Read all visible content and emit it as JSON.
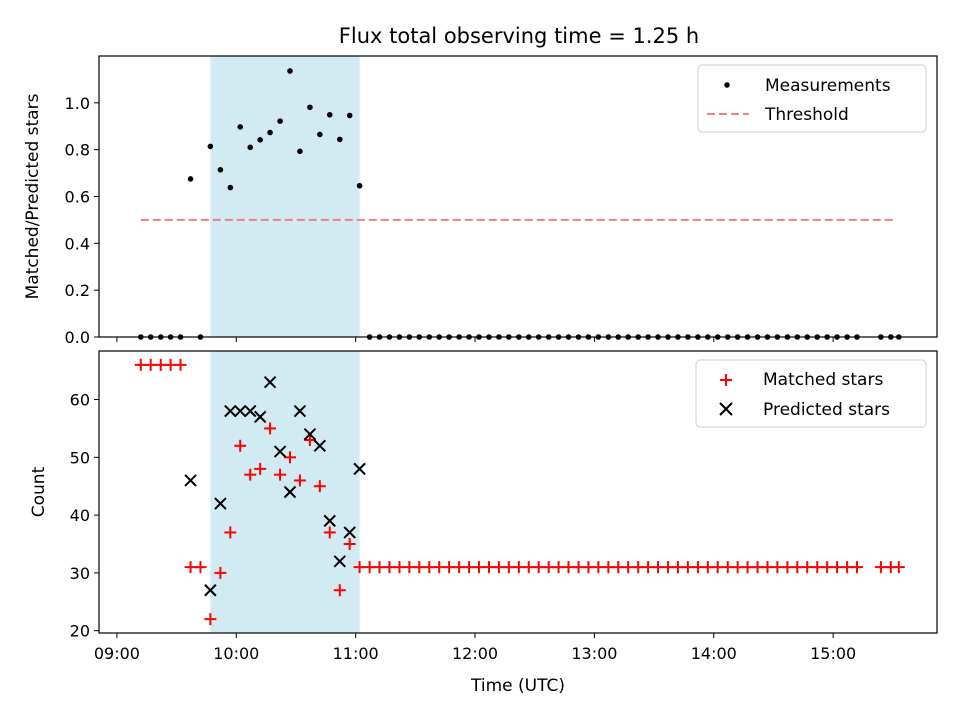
{
  "chart_data": {
    "title": "Flux total observing time = 1.25 h",
    "type": "scatter",
    "x_ticks": [
      "09:00",
      "10:00",
      "11:00",
      "12:00",
      "13:00",
      "14:00",
      "15:00"
    ],
    "xlabel": "Time (UTC)",
    "xlim_hours": [
      8.85,
      15.87
    ],
    "shaded_interval_hours": [
      9.783,
      11.033
    ],
    "colors": {
      "shade": "#add8e6",
      "threshold": "#f08080",
      "matched": "#ff0000",
      "predicted": "#000000",
      "measurement": "#000000"
    },
    "top": {
      "ylabel": "Matched/Predicted stars",
      "ylim": [
        0,
        1.2
      ],
      "y_ticks": [
        "0.0",
        "0.2",
        "0.4",
        "0.6",
        "0.8",
        "1.0"
      ],
      "threshold_value": 0.5,
      "threshold_x_range": [
        9.2,
        15.5
      ],
      "legend": [
        "Measurements",
        "Threshold"
      ],
      "measurements": [
        [
          9.2,
          0
        ],
        [
          9.283,
          0
        ],
        [
          9.367,
          0
        ],
        [
          9.45,
          0
        ],
        [
          9.533,
          0
        ],
        [
          9.617,
          0.675
        ],
        [
          9.7,
          0
        ],
        [
          9.783,
          0.814
        ],
        [
          9.867,
          0.714
        ],
        [
          9.95,
          0.638
        ],
        [
          10.033,
          0.897
        ],
        [
          10.117,
          0.81
        ],
        [
          10.2,
          0.842
        ],
        [
          10.283,
          0.873
        ],
        [
          10.367,
          0.922
        ],
        [
          10.45,
          1.136
        ],
        [
          10.533,
          0.793
        ],
        [
          10.617,
          0.981
        ],
        [
          10.7,
          0.865
        ],
        [
          10.783,
          0.949
        ],
        [
          10.867,
          0.844
        ],
        [
          10.95,
          0.946
        ],
        [
          11.033,
          0.646
        ],
        [
          11.117,
          0
        ],
        [
          11.2,
          0
        ],
        [
          11.283,
          0
        ],
        [
          11.367,
          0
        ],
        [
          11.45,
          0
        ],
        [
          11.533,
          0
        ],
        [
          11.617,
          0
        ],
        [
          11.7,
          0
        ],
        [
          11.783,
          0
        ],
        [
          11.867,
          0
        ],
        [
          11.95,
          0
        ],
        [
          12.033,
          0
        ],
        [
          12.117,
          0
        ],
        [
          12.2,
          0
        ],
        [
          12.283,
          0
        ],
        [
          12.367,
          0
        ],
        [
          12.45,
          0
        ],
        [
          12.533,
          0
        ],
        [
          12.617,
          0
        ],
        [
          12.7,
          0
        ],
        [
          12.783,
          0
        ],
        [
          12.867,
          0
        ],
        [
          12.95,
          0
        ],
        [
          13.033,
          0
        ],
        [
          13.117,
          0
        ],
        [
          13.2,
          0
        ],
        [
          13.283,
          0
        ],
        [
          13.367,
          0
        ],
        [
          13.45,
          0
        ],
        [
          13.533,
          0
        ],
        [
          13.617,
          0
        ],
        [
          13.7,
          0
        ],
        [
          13.783,
          0
        ],
        [
          13.867,
          0
        ],
        [
          13.95,
          0
        ],
        [
          14.033,
          0
        ],
        [
          14.117,
          0
        ],
        [
          14.2,
          0
        ],
        [
          14.283,
          0
        ],
        [
          14.367,
          0
        ],
        [
          14.45,
          0
        ],
        [
          14.533,
          0
        ],
        [
          14.617,
          0
        ],
        [
          14.7,
          0
        ],
        [
          14.783,
          0
        ],
        [
          14.867,
          0
        ],
        [
          14.95,
          0
        ],
        [
          15.033,
          0
        ],
        [
          15.117,
          0
        ],
        [
          15.2,
          0
        ],
        [
          15.4,
          0
        ],
        [
          15.483,
          0
        ],
        [
          15.55,
          0
        ]
      ]
    },
    "bottom": {
      "ylabel": "Count",
      "ylim": [
        19.6,
        68.4
      ],
      "y_ticks": [
        "20",
        "30",
        "40",
        "50",
        "60"
      ],
      "y_tick_values": [
        20,
        30,
        40,
        50,
        60
      ],
      "legend": [
        "Matched stars",
        "Predicted stars"
      ],
      "matched": [
        [
          9.2,
          66
        ],
        [
          9.283,
          66
        ],
        [
          9.367,
          66
        ],
        [
          9.45,
          66
        ],
        [
          9.533,
          66
        ],
        [
          9.617,
          31
        ],
        [
          9.7,
          31
        ],
        [
          9.783,
          22
        ],
        [
          9.867,
          30
        ],
        [
          9.95,
          37
        ],
        [
          10.033,
          52
        ],
        [
          10.117,
          47
        ],
        [
          10.2,
          48
        ],
        [
          10.283,
          55
        ],
        [
          10.367,
          47
        ],
        [
          10.45,
          50
        ],
        [
          10.533,
          46
        ],
        [
          10.617,
          53
        ],
        [
          10.7,
          45
        ],
        [
          10.783,
          37
        ],
        [
          10.867,
          27
        ],
        [
          10.95,
          35
        ],
        [
          11.033,
          31
        ],
        [
          11.117,
          31
        ],
        [
          11.2,
          31
        ],
        [
          11.283,
          31
        ],
        [
          11.367,
          31
        ],
        [
          11.45,
          31
        ],
        [
          11.533,
          31
        ],
        [
          11.617,
          31
        ],
        [
          11.7,
          31
        ],
        [
          11.783,
          31
        ],
        [
          11.867,
          31
        ],
        [
          11.95,
          31
        ],
        [
          12.033,
          31
        ],
        [
          12.117,
          31
        ],
        [
          12.2,
          31
        ],
        [
          12.283,
          31
        ],
        [
          12.367,
          31
        ],
        [
          12.45,
          31
        ],
        [
          12.533,
          31
        ],
        [
          12.617,
          31
        ],
        [
          12.7,
          31
        ],
        [
          12.783,
          31
        ],
        [
          12.867,
          31
        ],
        [
          12.95,
          31
        ],
        [
          13.033,
          31
        ],
        [
          13.117,
          31
        ],
        [
          13.2,
          31
        ],
        [
          13.283,
          31
        ],
        [
          13.367,
          31
        ],
        [
          13.45,
          31
        ],
        [
          13.533,
          31
        ],
        [
          13.617,
          31
        ],
        [
          13.7,
          31
        ],
        [
          13.783,
          31
        ],
        [
          13.867,
          31
        ],
        [
          13.95,
          31
        ],
        [
          14.033,
          31
        ],
        [
          14.117,
          31
        ],
        [
          14.2,
          31
        ],
        [
          14.283,
          31
        ],
        [
          14.367,
          31
        ],
        [
          14.45,
          31
        ],
        [
          14.533,
          31
        ],
        [
          14.617,
          31
        ],
        [
          14.7,
          31
        ],
        [
          14.783,
          31
        ],
        [
          14.867,
          31
        ],
        [
          14.95,
          31
        ],
        [
          15.033,
          31
        ],
        [
          15.117,
          31
        ],
        [
          15.2,
          31
        ],
        [
          15.4,
          31
        ],
        [
          15.483,
          31
        ],
        [
          15.55,
          31
        ]
      ],
      "predicted": [
        [
          9.617,
          46
        ],
        [
          9.783,
          27
        ],
        [
          9.867,
          42
        ],
        [
          9.95,
          58
        ],
        [
          10.033,
          58
        ],
        [
          10.117,
          58
        ],
        [
          10.2,
          57
        ],
        [
          10.283,
          63
        ],
        [
          10.367,
          51
        ],
        [
          10.45,
          44
        ],
        [
          10.533,
          58
        ],
        [
          10.617,
          54
        ],
        [
          10.7,
          52
        ],
        [
          10.783,
          39
        ],
        [
          10.867,
          32
        ],
        [
          10.95,
          37
        ],
        [
          11.033,
          48
        ]
      ]
    }
  }
}
